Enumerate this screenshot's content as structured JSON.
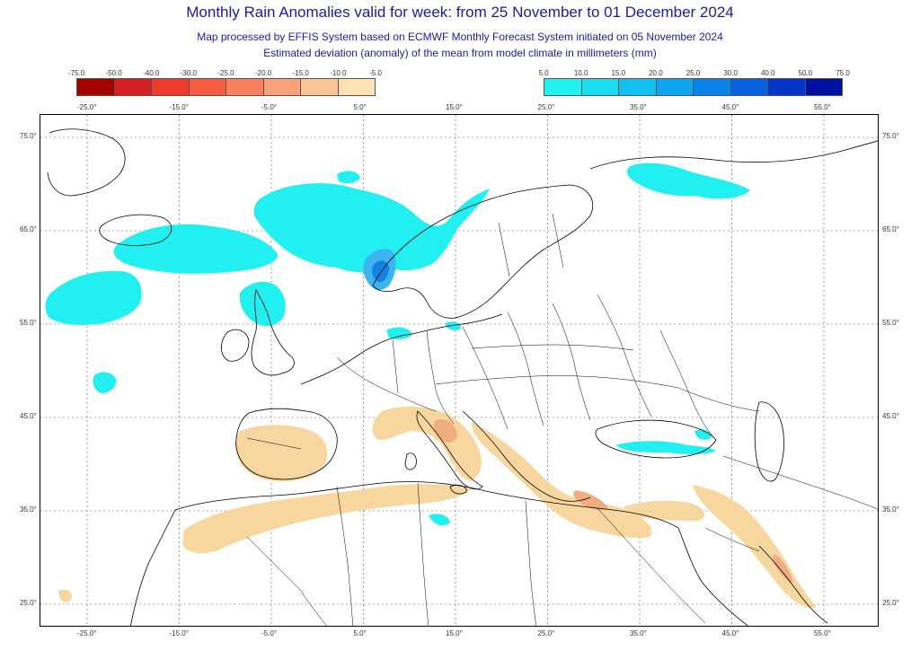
{
  "header": {
    "title": "Monthly Rain Anomalies valid for week: from 25 November to 01 December 2024",
    "subtitle_1": "Map processed by EFFIS System based on ECMWF Monthly Forecast System initiated on 05 November 2024",
    "subtitle_2": "Estimated deviation (anomaly) of the mean from model climate in millimeters (mm)"
  },
  "legend_negative": {
    "ticks": [
      "-75.0",
      "-50.0",
      "-40.0",
      "-30.0",
      "-25.0",
      "-20.0",
      "-15.0",
      "-10.0",
      "-5.0"
    ],
    "colors": [
      "#a50000",
      "#d42020",
      "#ee3a2a",
      "#f65c40",
      "#f8805a",
      "#faa27a",
      "#fbc497",
      "#fde2b4"
    ]
  },
  "legend_positive": {
    "ticks": [
      "5.0",
      "10.0",
      "15.0",
      "20.0",
      "25.0",
      "30.0",
      "40.0",
      "50.0",
      "75.0"
    ],
    "colors": [
      "#20f0f0",
      "#18dcf0",
      "#12c0f0",
      "#0ea4ee",
      "#0a82e8",
      "#0660e0",
      "#0335c8",
      "#0010a0"
    ]
  },
  "map": {
    "lon_labels": [
      "-25.0°",
      "-15.0°",
      "-5.0°",
      "5.0°",
      "15.0°",
      "25.0°",
      "35.0°",
      "45.0°",
      "55.0°"
    ],
    "lat_labels": [
      "75.0°",
      "65.0°",
      "55.0°",
      "45.0°",
      "35.0°",
      "25.0°"
    ],
    "colors": {
      "wet_light": "#22f0f0",
      "wet_mid": "#3bb4f0",
      "wet_deep": "#1480e0",
      "dry_light": "#f8d6a0",
      "dry_mid": "#f0ae80",
      "grid": "#555555",
      "coast": "#000000"
    }
  }
}
